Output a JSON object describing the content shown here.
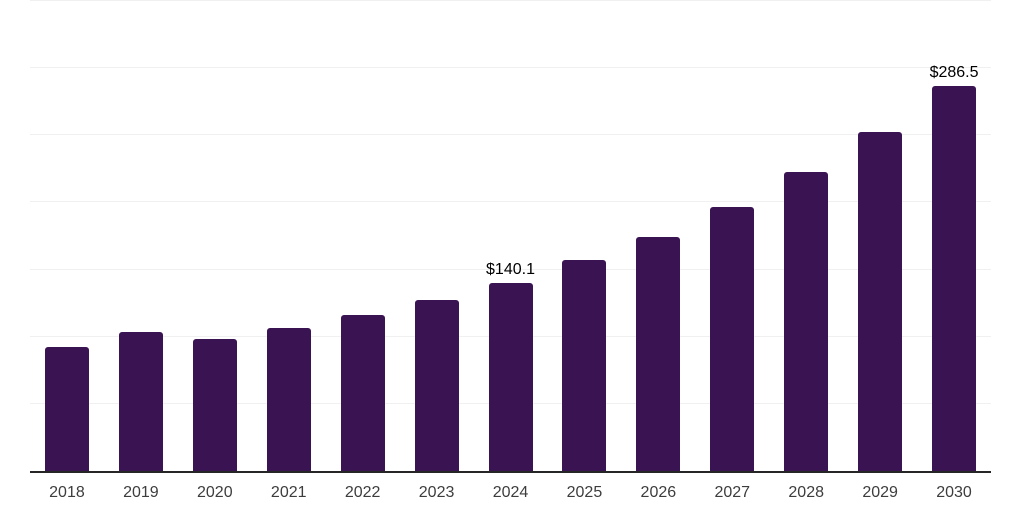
{
  "chart_data": {
    "type": "bar",
    "title": "",
    "xlabel": "",
    "ylabel": "",
    "categories": [
      "2018",
      "2019",
      "2020",
      "2021",
      "2022",
      "2023",
      "2024",
      "2025",
      "2026",
      "2027",
      "2028",
      "2029",
      "2030"
    ],
    "values": [
      92.4,
      103.7,
      98.3,
      106.3,
      116.0,
      127.4,
      140.1,
      156.8,
      174.5,
      196.7,
      222.5,
      252.4,
      286.5
    ],
    "data_labels": [
      {
        "category": "2024",
        "text": "$140.1"
      },
      {
        "category": "2030",
        "text": "$286.5"
      }
    ],
    "ylim": [
      0,
      350
    ],
    "gridline_step": 50,
    "grid": true,
    "y_tick_labels_visible": false,
    "legend_position": "none",
    "currency_prefix": "$"
  },
  "style": {
    "bar_color": "#3A1352",
    "axis_line_color": "#262626",
    "gridline_color": "#f0f0f0",
    "tick_label_color": "#3d3d3d",
    "data_label_color": "#000000",
    "background": "#ffffff"
  }
}
